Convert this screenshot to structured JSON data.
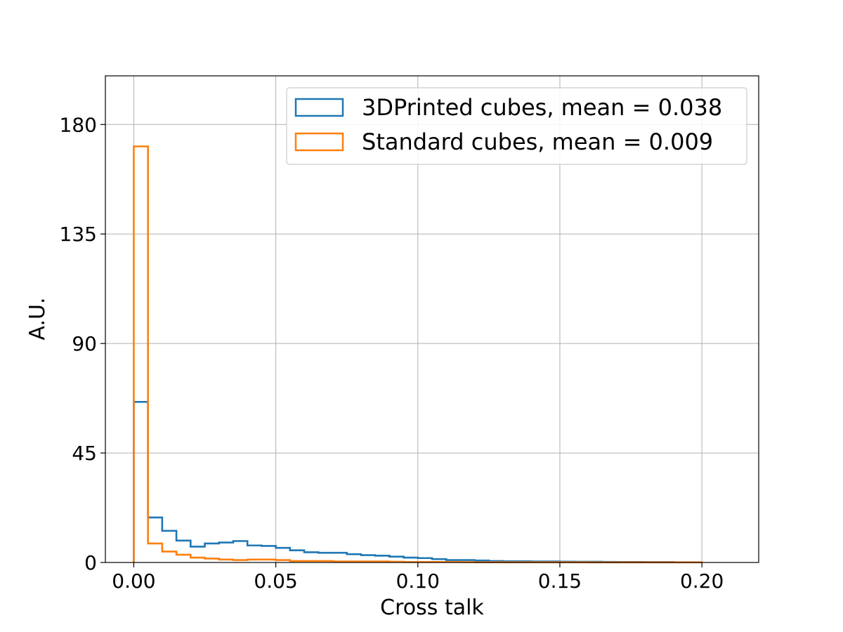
{
  "chart_data": {
    "type": "histogram",
    "xlabel": "Cross talk",
    "ylabel": "A.U.",
    "xlim": [
      -0.01,
      0.22
    ],
    "ylim": [
      0,
      200
    ],
    "xticks": [
      0.0,
      0.05,
      0.1,
      0.15,
      0.2
    ],
    "xtick_labels": [
      "0.00",
      "0.05",
      "0.10",
      "0.15",
      "0.20"
    ],
    "yticks": [
      0,
      45,
      90,
      135,
      180
    ],
    "ytick_labels": [
      "0",
      "45",
      "90",
      "135",
      "180"
    ],
    "grid": true,
    "legend_position": "top-right",
    "bin_edges": [
      0.0,
      0.005,
      0.01,
      0.015,
      0.02,
      0.025,
      0.03,
      0.035,
      0.04,
      0.045,
      0.05,
      0.055,
      0.06,
      0.065,
      0.07,
      0.075,
      0.08,
      0.085,
      0.09,
      0.095,
      0.1,
      0.105,
      0.11,
      0.115,
      0.12,
      0.125,
      0.13,
      0.135,
      0.14,
      0.145,
      0.15,
      0.155,
      0.16,
      0.165,
      0.17,
      0.175,
      0.18,
      0.185,
      0.19,
      0.195,
      0.2
    ],
    "series": [
      {
        "name": "3DPrinted cubes, mean = 0.038",
        "color": "#1f77b4",
        "values": [
          66,
          18.5,
          13,
          9,
          6.5,
          7.8,
          8.2,
          8.8,
          7,
          6.8,
          6,
          5,
          4.2,
          4,
          4,
          3.4,
          3,
          2.8,
          2.4,
          2,
          1.8,
          1.4,
          1,
          1,
          0.8,
          0.6,
          0.5,
          0.5,
          0.4,
          0.4,
          0.35,
          0.3,
          0.3,
          0.25,
          0.2,
          0.2,
          0.15,
          0.15,
          0.1,
          0.1
        ]
      },
      {
        "name": "Standard cubes, mean = 0.009",
        "color": "#ff7f0e",
        "values": [
          171,
          7.8,
          4.5,
          3.2,
          2,
          1.6,
          1.2,
          1,
          1.2,
          1.2,
          1,
          0.6,
          0.6,
          0.6,
          0.4,
          0.4,
          0.4,
          0.4,
          0.3,
          0.2,
          0.2,
          0.2,
          0.2,
          0.15,
          0.1,
          0.1,
          0.1,
          0.1,
          0.1,
          0.1,
          0.1,
          0.1,
          0.05,
          0.05,
          0.05,
          0.05,
          0.05,
          0.05,
          0.05,
          0.05
        ]
      }
    ]
  }
}
